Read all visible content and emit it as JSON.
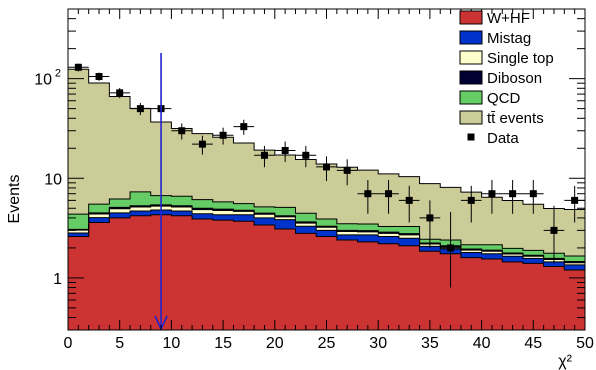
{
  "chart_data": {
    "type": "area",
    "xlabel": "χ²",
    "ylabel": "Events",
    "xlim": [
      0,
      50
    ],
    "ylim": [
      0.3,
      500
    ],
    "yscale": "log",
    "grid": false,
    "legend_position": "top-right",
    "x_ticks": [
      "0",
      "5",
      "10",
      "15",
      "20",
      "25",
      "30",
      "35",
      "40",
      "45",
      "50"
    ],
    "y_tick_labels": [
      {
        "value": 1,
        "label": "1"
      },
      {
        "value": 10,
        "label": "10"
      },
      {
        "value": 100,
        "label": "10",
        "exponent": "2"
      }
    ],
    "bin_edges": [
      0,
      2,
      4,
      6,
      8,
      10,
      12,
      14,
      16,
      18,
      20,
      22,
      24,
      26,
      28,
      30,
      32,
      34,
      36,
      38,
      40,
      42,
      44,
      46,
      48,
      50
    ],
    "stack": [
      {
        "name": "W+HF",
        "color": "#cc3333",
        "values": [
          2.6,
          3.6,
          4.0,
          4.2,
          4.3,
          4.2,
          3.9,
          3.8,
          3.7,
          3.4,
          3.1,
          2.8,
          2.6,
          2.4,
          2.3,
          2.2,
          2.1,
          1.85,
          1.75,
          1.6,
          1.55,
          1.45,
          1.4,
          1.3,
          1.2
        ]
      },
      {
        "name": "Mistag",
        "color": "#0033cc",
        "values": [
          0.22,
          0.43,
          0.5,
          0.5,
          0.5,
          0.5,
          0.5,
          0.5,
          0.6,
          0.6,
          0.75,
          0.5,
          0.4,
          0.3,
          0.4,
          0.4,
          0.4,
          0.22,
          0.2,
          0.2,
          0.2,
          0.2,
          0.17,
          0.15,
          0.15
        ]
      },
      {
        "name": "Single top",
        "color": "#ffffcc",
        "values": [
          0.2,
          0.35,
          0.45,
          0.45,
          0.45,
          0.45,
          0.45,
          0.45,
          0.35,
          0.35,
          0.25,
          0.25,
          0.22,
          0.22,
          0.2,
          0.2,
          0.2,
          0.12,
          0.1,
          0.1,
          0.1,
          0.09,
          0.08,
          0.08,
          0.07
        ]
      },
      {
        "name": "Diboson",
        "color": "#000033",
        "values": [
          0.05,
          0.12,
          0.15,
          0.15,
          0.15,
          0.15,
          0.15,
          0.15,
          0.12,
          0.12,
          0.1,
          0.1,
          0.08,
          0.08,
          0.08,
          0.08,
          0.08,
          0.05,
          0.05,
          0.05,
          0.05,
          0.04,
          0.04,
          0.04,
          0.04
        ]
      },
      {
        "name": "QCD",
        "color": "#66cc66",
        "values": [
          1.3,
          1.0,
          1.1,
          2.0,
          1.3,
          1.3,
          1.1,
          0.9,
          0.8,
          0.7,
          0.9,
          0.8,
          0.6,
          0.5,
          0.5,
          0.4,
          0.5,
          0.2,
          0.3,
          0.2,
          0.25,
          0.2,
          0.2,
          0.2,
          0.2
        ]
      },
      {
        "name": "tt̄ events",
        "color": "#cccc99",
        "values": [
          120,
          85,
          60,
          43,
          30,
          25,
          22,
          20,
          17,
          14,
          12,
          11,
          10,
          9.4,
          8.6,
          7.8,
          7.1,
          6.4,
          5.7,
          5.1,
          4.3,
          4.0,
          3.6,
          3.2,
          3.2
        ]
      }
    ],
    "data_series": {
      "name": "Data",
      "x": [
        1,
        3,
        5,
        7,
        9,
        11,
        13,
        15,
        17,
        19,
        21,
        23,
        25,
        27,
        29,
        31,
        33,
        35,
        37,
        39,
        41,
        43,
        45,
        47,
        49
      ],
      "y": [
        130,
        105,
        72,
        50,
        50,
        30,
        22,
        27,
        33,
        17,
        19,
        17,
        13,
        12,
        7,
        7,
        6,
        4,
        2,
        6,
        7,
        7,
        7,
        3,
        6
      ],
      "y_err_low": [
        12,
        10,
        8.5,
        7,
        7,
        5.5,
        4.7,
        5.2,
        5.7,
        4.1,
        4.4,
        4.1,
        3.6,
        3.5,
        2.6,
        2.6,
        2.4,
        2.0,
        1.2,
        2.4,
        2.6,
        2.6,
        2.6,
        1.6,
        2.4
      ],
      "y_err_high": [
        12,
        10,
        8.5,
        7,
        7,
        5.5,
        4.7,
        5.2,
        5.7,
        4.1,
        4.4,
        4.1,
        3.6,
        3.5,
        2.6,
        2.6,
        2.4,
        2.0,
        2.6,
        2.4,
        2.6,
        2.6,
        2.6,
        2.3,
        2.4
      ]
    },
    "cut_arrow": {
      "x": 9,
      "color": "#2222cc"
    }
  }
}
